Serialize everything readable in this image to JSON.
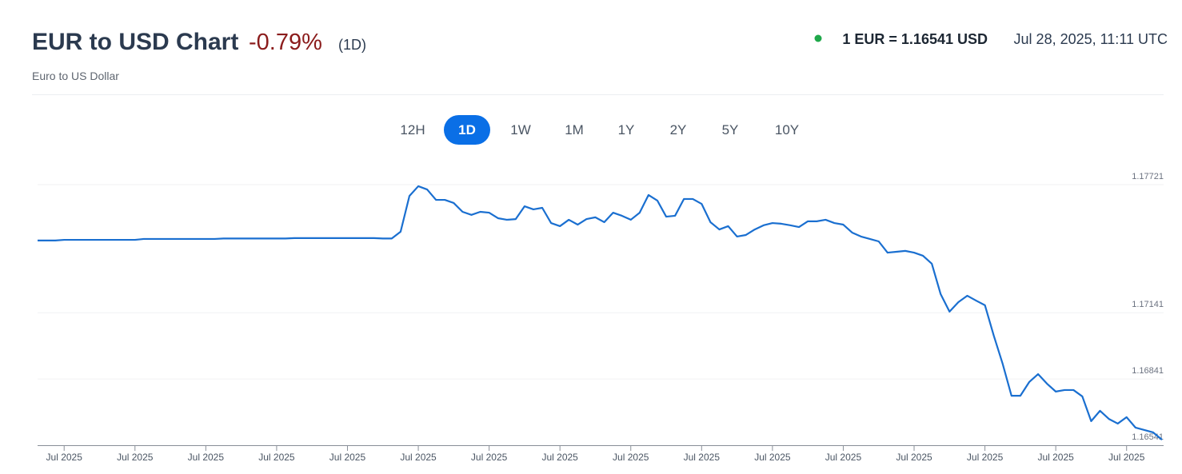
{
  "header": {
    "title": "EUR to USD Chart",
    "change": "-0.79%",
    "period": "(1D)",
    "subtitle": "Euro to US Dollar",
    "rate": "1 EUR = 1.16541 USD",
    "timestamp": "Jul 28, 2025, 11:11 UTC"
  },
  "ranges": [
    "12H",
    "1D",
    "1W",
    "1M",
    "1Y",
    "2Y",
    "5Y",
    "10Y"
  ],
  "active_range": 1,
  "chart_data": {
    "type": "line",
    "color": "#1a6fd0",
    "grid": true,
    "ylim": [
      1.16541,
      1.17721
    ],
    "yticks": [
      1.16541,
      1.16841,
      1.17141,
      1.17721
    ],
    "categories": [
      null,
      null,
      null,
      "Jul 2025",
      null,
      null,
      null,
      null,
      null,
      null,
      null,
      "Jul 2025",
      null,
      null,
      null,
      null,
      null,
      null,
      null,
      "Jul 2025",
      null,
      null,
      null,
      null,
      null,
      null,
      null,
      "Jul 2025",
      null,
      null,
      null,
      null,
      null,
      null,
      null,
      "Jul 2025",
      null,
      null,
      null,
      null,
      null,
      null,
      null,
      "Jul 2025",
      null,
      null,
      null,
      null,
      null,
      null,
      null,
      "Jul 2025",
      null,
      null,
      null,
      null,
      null,
      null,
      null,
      "Jul 2025",
      null,
      null,
      null,
      null,
      null,
      null,
      null,
      "Jul 2025",
      null,
      null,
      null,
      null,
      null,
      null,
      null,
      "Jul 2025",
      null,
      null,
      null,
      null,
      null,
      null,
      null,
      "Jul 2025",
      null,
      null,
      null,
      null,
      null,
      null,
      null,
      "Jul 2025",
      null,
      null,
      null,
      null,
      null,
      null,
      null,
      "Jul 2025",
      null,
      null,
      null,
      null,
      null,
      null,
      null,
      "Jul 2025",
      null,
      null,
      null,
      null,
      null,
      null,
      null,
      "Jul 2025",
      null,
      null,
      null,
      null,
      null,
      null,
      null,
      "Jul 2025",
      null,
      null,
      null,
      null
    ],
    "values": [
      1.17468,
      1.17468,
      1.17468,
      1.17471,
      1.17471,
      1.17471,
      1.17471,
      1.17471,
      1.17471,
      1.17471,
      1.17471,
      1.17471,
      1.17475,
      1.17475,
      1.17475,
      1.17475,
      1.17475,
      1.17475,
      1.17475,
      1.17475,
      1.17475,
      1.17477,
      1.17477,
      1.17477,
      1.17477,
      1.17477,
      1.17477,
      1.17477,
      1.17477,
      1.17479,
      1.17479,
      1.17479,
      1.17479,
      1.17479,
      1.17479,
      1.17479,
      1.17479,
      1.17479,
      1.17479,
      1.17477,
      1.17477,
      1.17508,
      1.1767,
      1.17714,
      1.17699,
      1.17652,
      1.17652,
      1.17638,
      1.17598,
      1.17584,
      1.17598,
      1.17594,
      1.17569,
      1.17562,
      1.17565,
      1.17623,
      1.17609,
      1.17616,
      1.17547,
      1.17533,
      1.17562,
      1.1754,
      1.17565,
      1.17573,
      1.17551,
      1.17594,
      1.1758,
      1.17562,
      1.17594,
      1.17674,
      1.17649,
      1.17576,
      1.1758,
      1.17656,
      1.17656,
      1.17634,
      1.17551,
      1.17518,
      1.17533,
      1.17486,
      1.17493,
      1.17518,
      1.17537,
      1.17547,
      1.17544,
      1.17537,
      1.17529,
      1.17555,
      1.17555,
      1.17562,
      1.17547,
      1.1754,
      1.17504,
      1.17486,
      1.17475,
      1.17464,
      1.17413,
      1.17417,
      1.17421,
      1.17413,
      1.17399,
      1.17363,
      1.17225,
      1.17146,
      1.17189,
      1.17218,
      1.17196,
      1.17175,
      1.17037,
      1.1691,
      1.16765,
      1.16765,
      1.16827,
      1.16863,
      1.1682,
      1.16784,
      1.16791,
      1.16791,
      1.16762,
      1.1665,
      1.16697,
      1.1666,
      1.16639,
      1.16668,
      1.16621,
      1.1661,
      1.16599,
      1.16566
    ]
  }
}
